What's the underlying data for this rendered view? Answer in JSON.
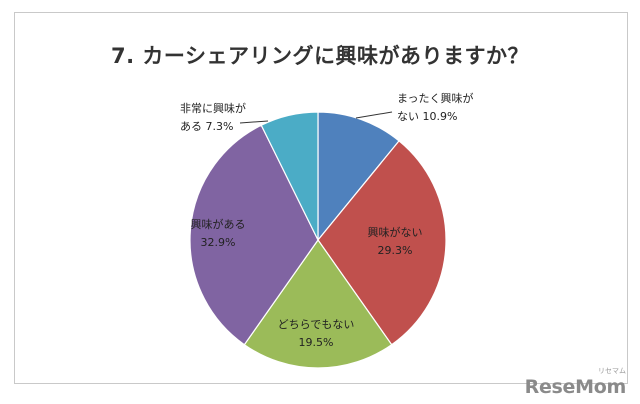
{
  "chart_data": {
    "type": "pie",
    "title": "7. カーシェアリングに興味がありますか？",
    "start_angle_deg": 0,
    "direction": "clockwise",
    "slices": [
      {
        "label_lines": [
          "まったく興味が",
          "ない 10.9%"
        ],
        "value": 10.9,
        "color": "#4f81bd",
        "label_outside": true
      },
      {
        "label_lines": [
          "興味がない",
          "29.3%"
        ],
        "value": 29.3,
        "color": "#c0504d",
        "label_outside": false
      },
      {
        "label_lines": [
          "どちらでもない",
          "19.5%"
        ],
        "value": 19.5,
        "color": "#9bbb59",
        "label_outside": false
      },
      {
        "label_lines": [
          "興味がある",
          "32.9%"
        ],
        "value": 32.9,
        "color": "#8064a2",
        "label_outside": false
      },
      {
        "label_lines": [
          "非常に興味が",
          "ある 7.3%"
        ],
        "value": 7.3,
        "color": "#4bacc6",
        "label_outside": true
      }
    ],
    "legend": "none"
  },
  "watermark": {
    "text": "ReseMom",
    "sub": "リセマム"
  }
}
